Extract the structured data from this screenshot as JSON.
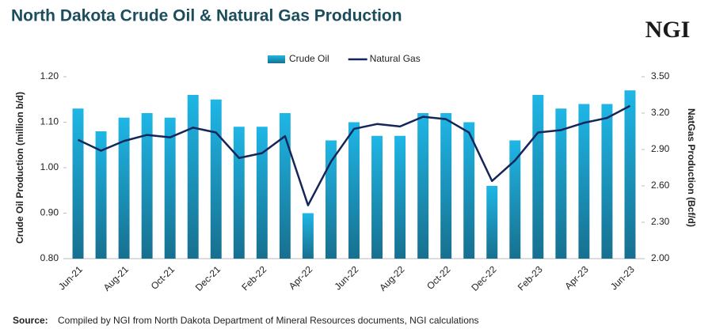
{
  "chart_data": {
    "type": "bar",
    "title": "North Dakota Crude Oil & Natural Gas Production",
    "logo": "NGI",
    "source_label": "Source:",
    "source_text": "Compiled by NGI from North Dakota Department of Mineral  Resources documents, NGI calculations",
    "y_label": "Crude Oil Production (million b/d)",
    "y2_label": "NatGas Production (Bcf/d)",
    "categories": [
      "Jun-21",
      null,
      "Aug-21",
      null,
      "Oct-21",
      null,
      "Dec-21",
      null,
      "Feb-22",
      null,
      "Apr-22",
      null,
      "Jun-22",
      null,
      "Aug-22",
      null,
      "Oct-22",
      null,
      "Dec-22",
      null,
      "Feb-23",
      null,
      "Apr-23",
      null,
      "Jun-23"
    ],
    "series": [
      {
        "name": "Crude Oil",
        "type": "bar",
        "axis": "y",
        "color": "#1fb6e6",
        "values": [
          1.13,
          1.08,
          1.11,
          1.12,
          1.11,
          1.16,
          1.15,
          1.09,
          1.09,
          1.12,
          0.9,
          1.06,
          1.1,
          1.07,
          1.07,
          1.12,
          1.12,
          1.1,
          0.96,
          1.06,
          1.16,
          1.13,
          1.14,
          1.14,
          1.17
        ]
      },
      {
        "name": "Natural Gas",
        "type": "line",
        "axis": "y2",
        "color": "#14265a",
        "values": [
          2.98,
          2.89,
          2.97,
          3.02,
          3.0,
          3.08,
          3.04,
          2.83,
          2.87,
          3.01,
          2.44,
          2.8,
          3.07,
          3.11,
          3.09,
          3.17,
          3.15,
          3.04,
          2.64,
          2.81,
          3.04,
          3.06,
          3.12,
          3.16,
          3.26
        ]
      }
    ],
    "ylim": [
      0.8,
      1.2
    ],
    "yticks": [
      {
        "value": 0.8,
        "label": "0.80"
      },
      {
        "value": 0.9,
        "label": "0.90"
      },
      {
        "value": 1.0,
        "label": "1.00"
      },
      {
        "value": 1.1,
        "label": "1.10"
      },
      {
        "value": 1.2,
        "label": "1.20"
      }
    ],
    "y2lim": [
      2.0,
      3.5
    ],
    "y2ticks": [
      {
        "value": 2.0,
        "label": "2.00"
      },
      {
        "value": 2.3,
        "label": "2.30"
      },
      {
        "value": 2.6,
        "label": "2.60"
      },
      {
        "value": 2.9,
        "label": "2.90"
      },
      {
        "value": 3.2,
        "label": "3.20"
      },
      {
        "value": 3.5,
        "label": "3.50"
      }
    ],
    "grid": false,
    "legend": "top"
  }
}
